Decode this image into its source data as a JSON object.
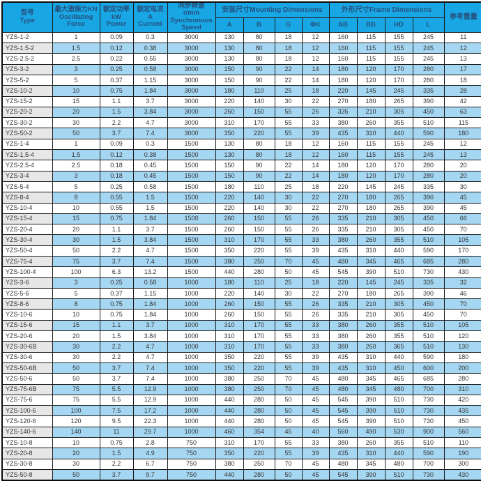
{
  "colors": {
    "header_bg": "#18a7e4",
    "header_text": "#25507e",
    "row_alt_bg": "#a6d7f2",
    "model_alt_bg": "#e7e7e7",
    "border": "#1b1b1b",
    "text": "#333333"
  },
  "table": {
    "header": {
      "model": "型号\nType",
      "force": "最大激振力KN\nOscillating\nForce",
      "power": "额定功率\nkW\nPower",
      "current": "额定电流\nA\nCurrent",
      "speed": "同步转速\nr/min\nSynchronous\nSpeed",
      "mounting_group": "安装尺寸Mounting Dimensions",
      "frame_group": "外形尺寸Frame Dimensions",
      "weight": "参考重量",
      "sub": [
        "A",
        "B",
        "G",
        "ΦK",
        "AB",
        "BB",
        "HD",
        "L"
      ]
    },
    "rows": [
      [
        "YZS-1-2",
        "1",
        "0.09",
        "0.3",
        "3000",
        "130",
        "80",
        "18",
        "12",
        "160",
        "115",
        "155",
        "245",
        "11"
      ],
      [
        "YZS-1.5-2",
        "1.5",
        "0.12",
        "0.38",
        "3000",
        "130",
        "80",
        "18",
        "12",
        "160",
        "115",
        "155",
        "245",
        "12"
      ],
      [
        "YZS-2.5-2",
        "2.5",
        "0.22",
        "0.55",
        "3000",
        "130",
        "80",
        "18",
        "12",
        "160",
        "115",
        "155",
        "245",
        "13"
      ],
      [
        "YZS-3-2",
        "3",
        "0.25",
        "0.58",
        "3000",
        "150",
        "90",
        "22",
        "14",
        "180",
        "120",
        "170",
        "280",
        "17"
      ],
      [
        "YZS-5-2",
        "5",
        "0.37",
        "1.15",
        "3000",
        "150",
        "90",
        "22",
        "14",
        "180",
        "120",
        "170",
        "280",
        "18"
      ],
      [
        "YZS-10-2",
        "10",
        "0.75",
        "1.84",
        "3000",
        "180",
        "110",
        "25",
        "18",
        "220",
        "145",
        "245",
        "335",
        "28"
      ],
      [
        "YZS-15-2",
        "15",
        "1.1",
        "3.7",
        "3000",
        "220",
        "140",
        "30",
        "22",
        "270",
        "180",
        "265",
        "390",
        "42"
      ],
      [
        "YZS-20-2",
        "20",
        "1.5",
        "3.84",
        "3000",
        "260",
        "150",
        "55",
        "26",
        "335",
        "210",
        "305",
        "450",
        "63"
      ],
      [
        "YZS-30-2",
        "30",
        "2.2",
        "4.7",
        "3000",
        "310",
        "170",
        "55",
        "33",
        "380",
        "260",
        "355",
        "510",
        "115"
      ],
      [
        "YZS-50-2",
        "50",
        "3.7",
        "7.4",
        "3000",
        "350",
        "220",
        "55",
        "39",
        "435",
        "310",
        "440",
        "590",
        "180"
      ],
      [
        "YZS-1-4",
        "1",
        "0.09",
        "0.3",
        "1500",
        "130",
        "80",
        "18",
        "12",
        "160",
        "115",
        "155",
        "245",
        "12"
      ],
      [
        "YZS-1.5-4",
        "1.5",
        "0.12",
        "0.38",
        "1500",
        "130",
        "80",
        "18",
        "12",
        "160",
        "115",
        "155",
        "245",
        "13"
      ],
      [
        "YZS-2.5-4",
        "2.5",
        "0.18",
        "0.45",
        "1500",
        "150",
        "90",
        "22",
        "14",
        "180",
        "120",
        "170",
        "280",
        "20"
      ],
      [
        "YZS-3-4",
        "3",
        "0.18",
        "0.45",
        "1500",
        "150",
        "90",
        "22",
        "14",
        "180",
        "120",
        "170",
        "280",
        "20"
      ],
      [
        "YZS-5-4",
        "5",
        "0.25",
        "0.58",
        "1500",
        "180",
        "110",
        "25",
        "18",
        "220",
        "145",
        "245",
        "335",
        "30"
      ],
      [
        "YZS-8-4",
        "8",
        "0.55",
        "1.5",
        "1500",
        "220",
        "140",
        "30",
        "22",
        "270",
        "180",
        "265",
        "390",
        "45"
      ],
      [
        "YZS-10-4",
        "10",
        "0.55",
        "1.5",
        "1500",
        "220",
        "140",
        "30",
        "22",
        "270",
        "180",
        "265",
        "390",
        "45"
      ],
      [
        "YZS-15-4",
        "15",
        "0.75",
        "1.84",
        "1500",
        "260",
        "150",
        "55",
        "26",
        "335",
        "210",
        "305",
        "450",
        "66"
      ],
      [
        "YZS-20-4",
        "20",
        "1.1",
        "3.7",
        "1500",
        "260",
        "150",
        "55",
        "26",
        "335",
        "210",
        "305",
        "450",
        "70"
      ],
      [
        "YZS-30-4",
        "30",
        "1.5",
        "3.84",
        "1500",
        "310",
        "170",
        "55",
        "33",
        "380",
        "260",
        "355",
        "510",
        "105"
      ],
      [
        "YZS-50-4",
        "50",
        "2.2",
        "4.7",
        "1500",
        "350",
        "220",
        "55",
        "39",
        "435",
        "310",
        "440",
        "590",
        "170"
      ],
      [
        "YZS-75-4",
        "75",
        "3.7",
        "7.4",
        "1500",
        "380",
        "250",
        "70",
        "45",
        "480",
        "345",
        "465",
        "685",
        "280"
      ],
      [
        "YZS-100-4",
        "100",
        "6.3",
        "13.2",
        "1500",
        "440",
        "280",
        "50",
        "45",
        "545",
        "390",
        "510",
        "730",
        "430"
      ],
      [
        "YZS-3-6",
        "3",
        "0.25",
        "0.58",
        "1000",
        "180",
        "110",
        "25",
        "18",
        "220",
        "145",
        "245",
        "335",
        "32"
      ],
      [
        "YZS-5-6",
        "5",
        "0.37",
        "1.15",
        "1000",
        "220",
        "140",
        "30",
        "22",
        "270",
        "180",
        "265",
        "390",
        "46"
      ],
      [
        "YZS-8-6",
        "8",
        "0.75",
        "1.84",
        "1000",
        "260",
        "150",
        "55",
        "26",
        "335",
        "210",
        "305",
        "450",
        "70"
      ],
      [
        "YZS-10-6",
        "10",
        "0.75",
        "1.84",
        "1000",
        "260",
        "150",
        "55",
        "26",
        "335",
        "210",
        "305",
        "450",
        "70"
      ],
      [
        "YZS-15-6",
        "15",
        "1.1",
        "3.7",
        "1000",
        "310",
        "170",
        "55",
        "33",
        "380",
        "260",
        "355",
        "510",
        "105"
      ],
      [
        "YZS-20-6",
        "20",
        "1.5",
        "3.84",
        "1000",
        "310",
        "170",
        "55",
        "33",
        "380",
        "260",
        "355",
        "510",
        "120"
      ],
      [
        "YZS-30-6B",
        "30",
        "2.2",
        "4.7",
        "1000",
        "310",
        "170",
        "55",
        "33",
        "380",
        "260",
        "365",
        "510",
        "130"
      ],
      [
        "YZS-30-6",
        "30",
        "2.2",
        "4.7",
        "1000",
        "350",
        "220",
        "55",
        "39",
        "435",
        "310",
        "440",
        "590",
        "180"
      ],
      [
        "YZS-50-6B",
        "50",
        "3.7",
        "7.4",
        "1000",
        "350",
        "220",
        "55",
        "39",
        "435",
        "310",
        "450",
        "600",
        "200"
      ],
      [
        "YZS-50-6",
        "50",
        "3.7",
        "7.4",
        "1000",
        "380",
        "250",
        "70",
        "45",
        "480",
        "345",
        "465",
        "685",
        "280"
      ],
      [
        "YZS-75-6B",
        "75",
        "5.5",
        "12.9",
        "1000",
        "380",
        "250",
        "70",
        "45",
        "480",
        "345",
        "480",
        "700",
        "310"
      ],
      [
        "YZS-75-6",
        "75",
        "5.5",
        "12.9",
        "1000",
        "440",
        "280",
        "50",
        "45",
        "545",
        "390",
        "510",
        "730",
        "420"
      ],
      [
        "YZS-100-6",
        "100",
        "7.5",
        "17.2",
        "1000",
        "440",
        "280",
        "50",
        "45",
        "545",
        "390",
        "510",
        "730",
        "435"
      ],
      [
        "YZS-120-6",
        "120",
        "9.5",
        "22.3",
        "1000",
        "440",
        "280",
        "50",
        "45",
        "545",
        "390",
        "510",
        "730",
        "450"
      ],
      [
        "YZS-140-6",
        "140",
        "11",
        "29.7",
        "1000",
        "460",
        "354",
        "45",
        "40",
        "560",
        "490",
        "530",
        "900",
        "560"
      ],
      [
        "YZS-10-8",
        "10",
        "0.75",
        "2.8",
        "750",
        "310",
        "170",
        "55",
        "33",
        "380",
        "260",
        "355",
        "510",
        "110"
      ],
      [
        "YZS-20-8",
        "20",
        "1.5",
        "4.9",
        "750",
        "350",
        "220",
        "55",
        "39",
        "435",
        "310",
        "440",
        "590",
        "190"
      ],
      [
        "YZS-30-8",
        "30",
        "2.2",
        "6.7",
        "750",
        "380",
        "250",
        "70",
        "45",
        "480",
        "345",
        "480",
        "700",
        "300"
      ],
      [
        "YZS-50-8",
        "50",
        "3.7",
        "9.7",
        "750",
        "440",
        "280",
        "50",
        "45",
        "545",
        "390",
        "510",
        "730",
        "430"
      ]
    ]
  }
}
